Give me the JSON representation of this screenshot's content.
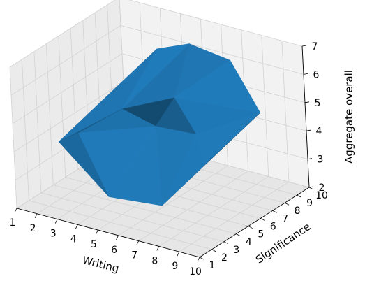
{
  "chart_data": {
    "type": "surface3d",
    "xlabel": "Writing",
    "ylabel": "Significance",
    "zlabel": "Aggregate overall",
    "xlim": [
      1,
      10
    ],
    "ylim": [
      1,
      10
    ],
    "zlim": [
      2,
      7
    ],
    "x_ticks": [
      "1",
      "2",
      "3",
      "4",
      "5",
      "6",
      "7",
      "8",
      "9",
      "10"
    ],
    "y_ticks": [
      "1",
      "2",
      "3",
      "4",
      "5",
      "6",
      "7",
      "8",
      "9",
      "10"
    ],
    "z_ticks": [
      "2",
      "3",
      "4",
      "5",
      "6",
      "7"
    ],
    "grid": true,
    "surface_color": "#1f77b4",
    "points": [
      {
        "x": 2,
        "y": 3,
        "z": 4.0
      },
      {
        "x": 2,
        "y": 4,
        "z": 4.1
      },
      {
        "x": 3,
        "y": 3,
        "z": 4.5
      },
      {
        "x": 4,
        "y": 8,
        "z": 6.3
      },
      {
        "x": 5,
        "y": 9,
        "z": 6.4
      },
      {
        "x": 7,
        "y": 9,
        "z": 6.2
      },
      {
        "x": 9,
        "y": 8,
        "z": 5.0
      },
      {
        "x": 8,
        "y": 5,
        "z": 3.8
      },
      {
        "x": 7,
        "y": 3,
        "z": 2.7
      },
      {
        "x": 5,
        "y": 2,
        "z": 2.9
      },
      {
        "x": 4,
        "y": 5,
        "z": 5.0
      },
      {
        "x": 6,
        "y": 6,
        "z": 5.5
      },
      {
        "x": 5,
        "y": 6,
        "z": 4.3
      },
      {
        "x": 7,
        "y": 6,
        "z": 4.4
      }
    ]
  }
}
